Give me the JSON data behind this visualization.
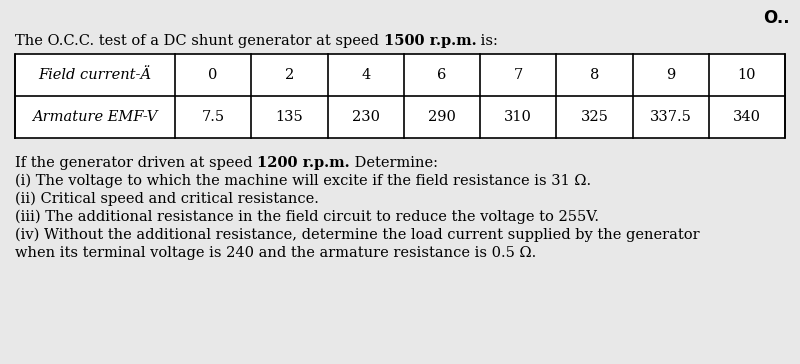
{
  "bg_color": "#e8e8e8",
  "table_bg": "#ffffff",
  "watermark": "O..",
  "title_parts": [
    {
      "text": "The O.C.C. test of a DC shunt generator at speed ",
      "bold": false
    },
    {
      "text": "1500 r.p.m.",
      "bold": true
    },
    {
      "text": " is:",
      "bold": false
    }
  ],
  "col_headers": [
    "Field current-Ä",
    "0",
    "2",
    "4",
    "6",
    "7",
    "8",
    "9",
    "10"
  ],
  "row2_label": "Armature EMF-V",
  "row2_values": [
    "7.5",
    "135",
    "230",
    "290",
    "310",
    "325",
    "337.5",
    "340"
  ],
  "para1_parts": [
    {
      "text": "If the generator driven at speed ",
      "bold": false
    },
    {
      "text": "1200 r.p.m.",
      "bold": true
    },
    {
      "text": " Determine:",
      "bold": false
    }
  ],
  "lines": [
    "(i) The voltage to which the machine will excite if the field resistance is 31 Ω.",
    "(ii) Critical speed and critical resistance.",
    "(iii) The additional resistance in the field circuit to reduce the voltage to 255V.",
    "(iv) Without the additional resistance, determine the load current supplied by the generator",
    "when its terminal voltage is 240 and the armature resistance is 0.5 Ω."
  ],
  "font_size": 10.5,
  "table_font_size": 10.5
}
